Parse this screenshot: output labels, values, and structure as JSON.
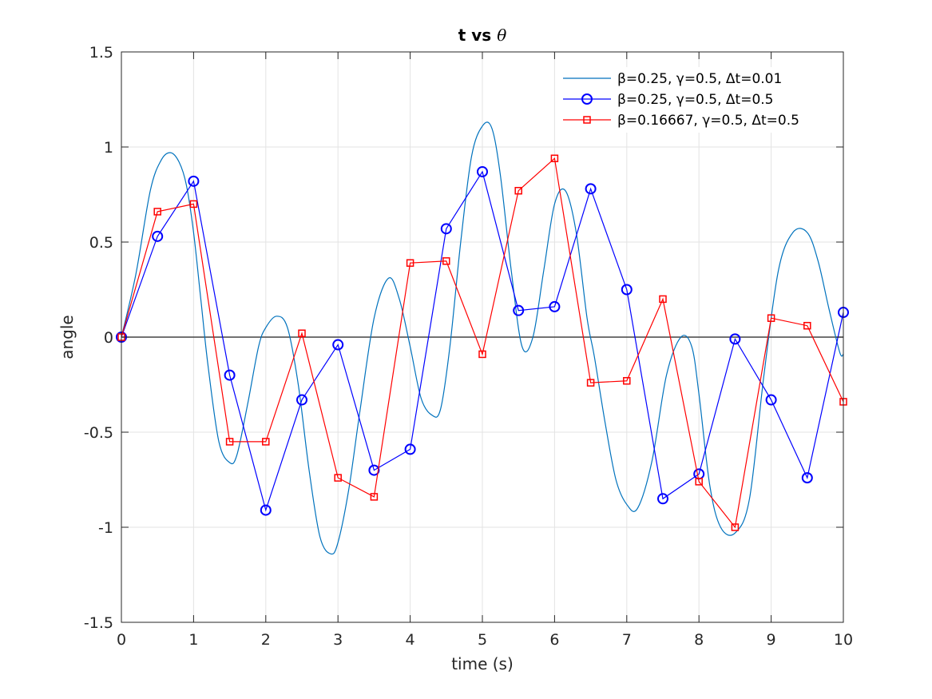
{
  "chart_data": {
    "type": "line",
    "title_main": "t vs ",
    "title_symbol": "θ",
    "xlabel": "time (s)",
    "ylabel": "angle",
    "xlim": [
      0,
      10
    ],
    "ylim": [
      -1.5,
      1.5
    ],
    "xticks": [
      0,
      1,
      2,
      3,
      4,
      5,
      6,
      7,
      8,
      9,
      10
    ],
    "xtick_labels": [
      "0",
      "1",
      "2",
      "3",
      "4",
      "5",
      "6",
      "7",
      "8",
      "9",
      "10"
    ],
    "yticks": [
      -1.5,
      -1,
      -0.5,
      0,
      0.5,
      1,
      1.5
    ],
    "ytick_labels": [
      "-1.5",
      "-1",
      "-0.5",
      "0",
      "0.5",
      "1",
      "1.5"
    ],
    "grid": true,
    "zero_line": true,
    "legend_position": "top-right",
    "series": [
      {
        "name": "β=0.25, γ=0.5, Δt=0.01",
        "color": "#0072bd",
        "marker": "none",
        "x": [
          0,
          0.2,
          0.4,
          0.55,
          0.68,
          0.8,
          0.9,
          1.0,
          1.1,
          1.2,
          1.35,
          1.5,
          1.6,
          1.75,
          1.9,
          2.0,
          2.15,
          2.3,
          2.45,
          2.6,
          2.75,
          2.9,
          3.0,
          3.15,
          3.3,
          3.5,
          3.7,
          3.85,
          4.0,
          4.15,
          4.3,
          4.42,
          4.55,
          4.7,
          4.85,
          5.0,
          5.13,
          5.25,
          5.4,
          5.55,
          5.7,
          5.85,
          6.0,
          6.15,
          6.3,
          6.45,
          6.55,
          6.7,
          6.85,
          7.0,
          7.15,
          7.35,
          7.55,
          7.75,
          7.9,
          8.0,
          8.15,
          8.3,
          8.5,
          8.7,
          8.9,
          9.1,
          9.3,
          9.5,
          9.65,
          9.8,
          9.95,
          10.0
        ],
        "y": [
          0,
          0.33,
          0.77,
          0.93,
          0.97,
          0.92,
          0.8,
          0.55,
          0.2,
          -0.15,
          -0.55,
          -0.66,
          -0.62,
          -0.35,
          -0.05,
          0.05,
          0.11,
          0.05,
          -0.25,
          -0.7,
          -1.05,
          -1.14,
          -1.08,
          -0.8,
          -0.4,
          0.1,
          0.31,
          0.2,
          -0.05,
          -0.32,
          -0.41,
          -0.38,
          -0.05,
          0.5,
          0.95,
          1.11,
          1.1,
          0.85,
          0.35,
          -0.05,
          0.0,
          0.35,
          0.7,
          0.77,
          0.55,
          0.1,
          -0.1,
          -0.45,
          -0.75,
          -0.88,
          -0.9,
          -0.65,
          -0.2,
          0.0,
          -0.05,
          -0.3,
          -0.78,
          -1.0,
          -1.03,
          -0.85,
          -0.2,
          0.35,
          0.55,
          0.55,
          0.4,
          0.15,
          -0.08,
          -0.09
        ]
      },
      {
        "name": "β=0.25, γ=0.5, Δt=0.5",
        "color": "#0000ff",
        "marker": "circle",
        "x": [
          0,
          0.5,
          1.0,
          1.5,
          2.0,
          2.5,
          3.0,
          3.5,
          4.0,
          4.5,
          5.0,
          5.5,
          6.0,
          6.5,
          7.0,
          7.5,
          8.0,
          8.5,
          9.0,
          9.5,
          10.0
        ],
        "y": [
          0,
          0.53,
          0.82,
          -0.2,
          -0.91,
          -0.33,
          -0.04,
          -0.7,
          -0.59,
          0.57,
          0.87,
          0.14,
          0.16,
          0.78,
          0.25,
          -0.85,
          -0.72,
          -0.01,
          -0.33,
          -0.74,
          0.13
        ]
      },
      {
        "name": "β=0.16667, γ=0.5, Δt=0.5",
        "color": "#ff0000",
        "marker": "square",
        "x": [
          0,
          0.5,
          1.0,
          1.5,
          2.0,
          2.5,
          3.0,
          3.5,
          4.0,
          4.5,
          5.0,
          5.5,
          6.0,
          6.5,
          7.0,
          7.5,
          8.0,
          8.5,
          9.0,
          9.5,
          10.0
        ],
        "y": [
          0,
          0.66,
          0.7,
          -0.55,
          -0.55,
          0.02,
          -0.74,
          -0.84,
          0.39,
          0.4,
          -0.09,
          0.77,
          0.94,
          -0.24,
          -0.23,
          0.2,
          -0.76,
          -1.0,
          0.1,
          0.06,
          -0.34
        ]
      }
    ]
  }
}
